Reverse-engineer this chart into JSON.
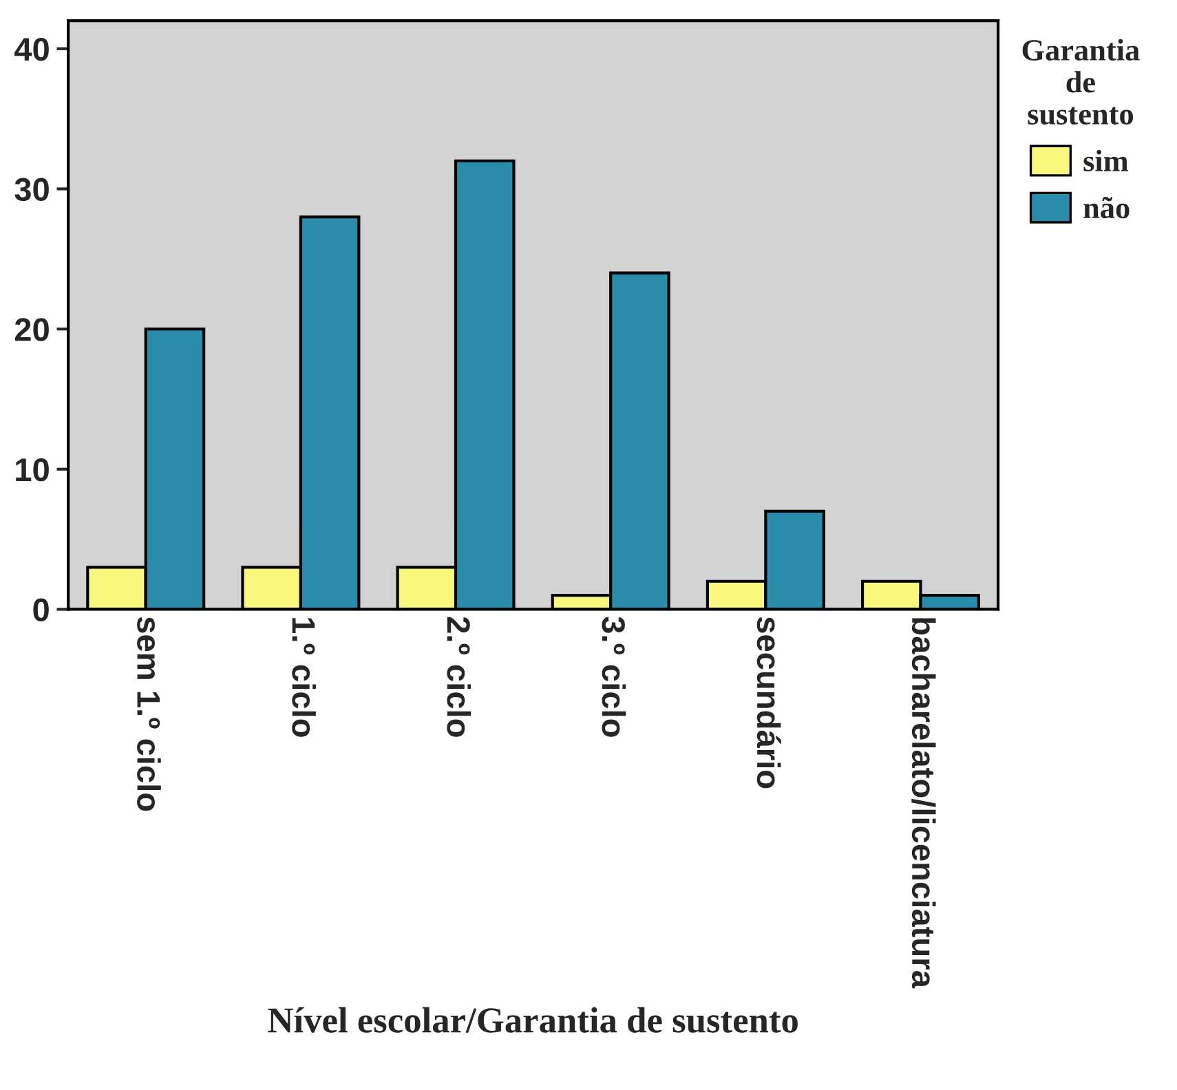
{
  "chart_data": {
    "type": "bar",
    "xlabel": "Nível escolar/Garantia de sustento",
    "legend_title": "Garantia\nde\nsustento",
    "categories": [
      "sem 1.º ciclo",
      "1.º ciclo",
      "2.º ciclo",
      "3.º ciclo",
      "secundário",
      "bacharelato/licenciatura"
    ],
    "series": [
      {
        "name": "sim",
        "color": "#f9f77e",
        "values": [
          3,
          3,
          3,
          1,
          2,
          2
        ]
      },
      {
        "name": "não",
        "color": "#2a8cab",
        "values": [
          20,
          28,
          32,
          24,
          7,
          1
        ]
      }
    ],
    "ylim": [
      0,
      42
    ],
    "yticks": [
      0,
      10,
      20,
      30,
      40
    ],
    "grid": false,
    "legend": "right"
  }
}
